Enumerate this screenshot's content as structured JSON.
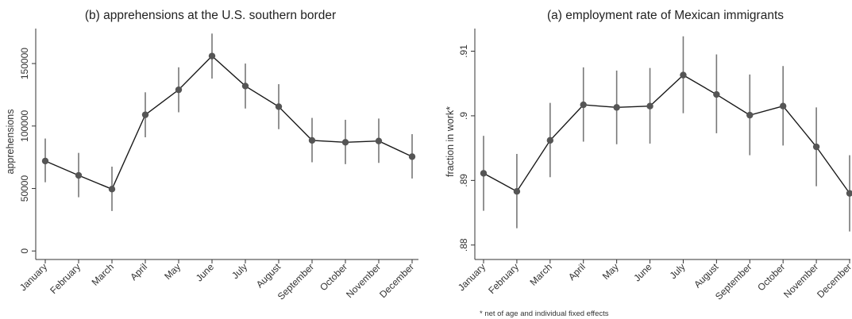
{
  "chart_data": [
    {
      "type": "line",
      "title": "(b) apprehensions at the U.S. southern border",
      "xlabel": "",
      "ylabel": "apprehensions",
      "categories": [
        "January",
        "February",
        "March",
        "April",
        "May",
        "June",
        "July",
        "August",
        "September",
        "October",
        "November",
        "December"
      ],
      "yticks": [
        0,
        50000,
        100000,
        150000
      ],
      "ytick_labels": [
        "0",
        "50000",
        "100000",
        "150000"
      ],
      "ylim": [
        -3000,
        178000
      ],
      "series": [
        {
          "values": [
            72000,
            60500,
            49500,
            109000,
            129000,
            156000,
            132000,
            115500,
            88500,
            87000,
            88000,
            75500
          ],
          "ci_low": [
            55000,
            43000,
            32000,
            91000,
            111000,
            138000,
            114000,
            97500,
            71000,
            69500,
            70500,
            58000
          ],
          "ci_high": [
            90000,
            78500,
            67500,
            127000,
            147000,
            174000,
            150000,
            133500,
            106500,
            105000,
            106000,
            93500
          ]
        }
      ],
      "grid": false,
      "legend": "none",
      "colors": {
        "line": "#1a1a1a",
        "point": "#555555",
        "ci": "#777777"
      }
    },
    {
      "type": "line",
      "title": "(a) employment rate of Mexican immigrants",
      "xlabel": "",
      "ylabel": "fraction in work*",
      "categories": [
        "January",
        "February",
        "March",
        "April",
        "May",
        "June",
        "July",
        "August",
        "September",
        "October",
        "November",
        "December"
      ],
      "yticks": [
        0.88,
        0.89,
        0.9,
        0.91
      ],
      "ytick_labels": [
        ".88",
        ".89",
        ".9",
        ".91"
      ],
      "ylim": [
        0.8785,
        0.9135
      ],
      "series": [
        {
          "values": [
            0.8911,
            0.8883,
            0.8962,
            0.9017,
            0.9013,
            0.9015,
            0.9063,
            0.9033,
            0.9001,
            0.9015,
            0.8952,
            0.888
          ],
          "ci_low": [
            0.8853,
            0.8826,
            0.8905,
            0.896,
            0.8956,
            0.8957,
            0.9004,
            0.8973,
            0.8939,
            0.8954,
            0.8891,
            0.8821
          ],
          "ci_high": [
            0.8969,
            0.8941,
            0.902,
            0.9075,
            0.907,
            0.9074,
            0.9123,
            0.9095,
            0.9064,
            0.9077,
            0.9013,
            0.8939
          ]
        }
      ],
      "grid": false,
      "legend": "none",
      "colors": {
        "line": "#1a1a1a",
        "point": "#555555",
        "ci": "#777777"
      }
    }
  ],
  "footnote": "* net of age and individual fixed effects"
}
